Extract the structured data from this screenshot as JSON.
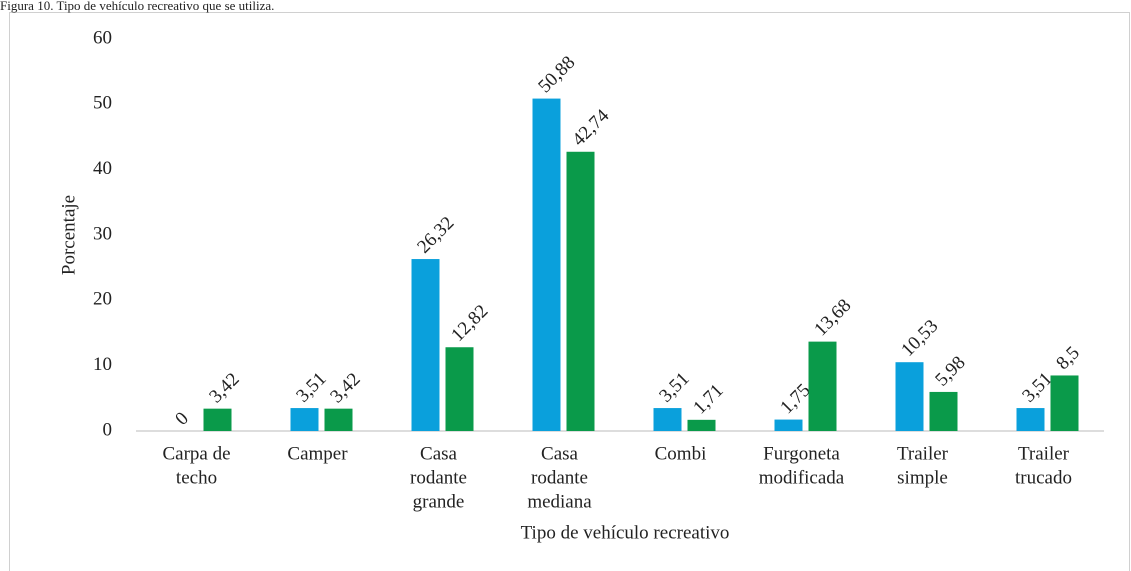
{
  "chart_data": {
    "type": "bar",
    "title": "Figura 10. Tipo de vehículo recreativo que se utiliza.",
    "y_label": "Porcentaje",
    "x_label": "Tipo de vehículo recreativo",
    "categories": [
      [
        "Carpa de",
        "techo"
      ],
      [
        "Camper"
      ],
      [
        "Casa",
        "rodante",
        "grande"
      ],
      [
        "Casa",
        "rodante",
        "mediana"
      ],
      [
        "Combi"
      ],
      [
        "Furgoneta",
        "modificada"
      ],
      [
        "Trailer",
        "simple"
      ],
      [
        "Trailer",
        "trucado"
      ]
    ],
    "series": [
      {
        "color": "#0aa0dc",
        "values": [
          0,
          3.51,
          26.32,
          50.88,
          3.51,
          1.75,
          10.53,
          3.51
        ],
        "value_labels": [
          "0",
          "3,51",
          "26,32",
          "50,88",
          "3,51",
          "1,75",
          "10,53",
          "3,51"
        ]
      },
      {
        "color": "#0a9a4a",
        "values": [
          3.42,
          3.42,
          12.82,
          42.74,
          1.71,
          13.68,
          5.98,
          8.5
        ],
        "value_labels": [
          "3,42",
          "3,42",
          "12,82",
          "42,74",
          "1,71",
          "13,68",
          "5,98",
          "8,5"
        ]
      }
    ],
    "ylim": [
      0,
      60
    ],
    "yticks": [
      0,
      10,
      20,
      30,
      40,
      50,
      60
    ],
    "grid": false
  }
}
